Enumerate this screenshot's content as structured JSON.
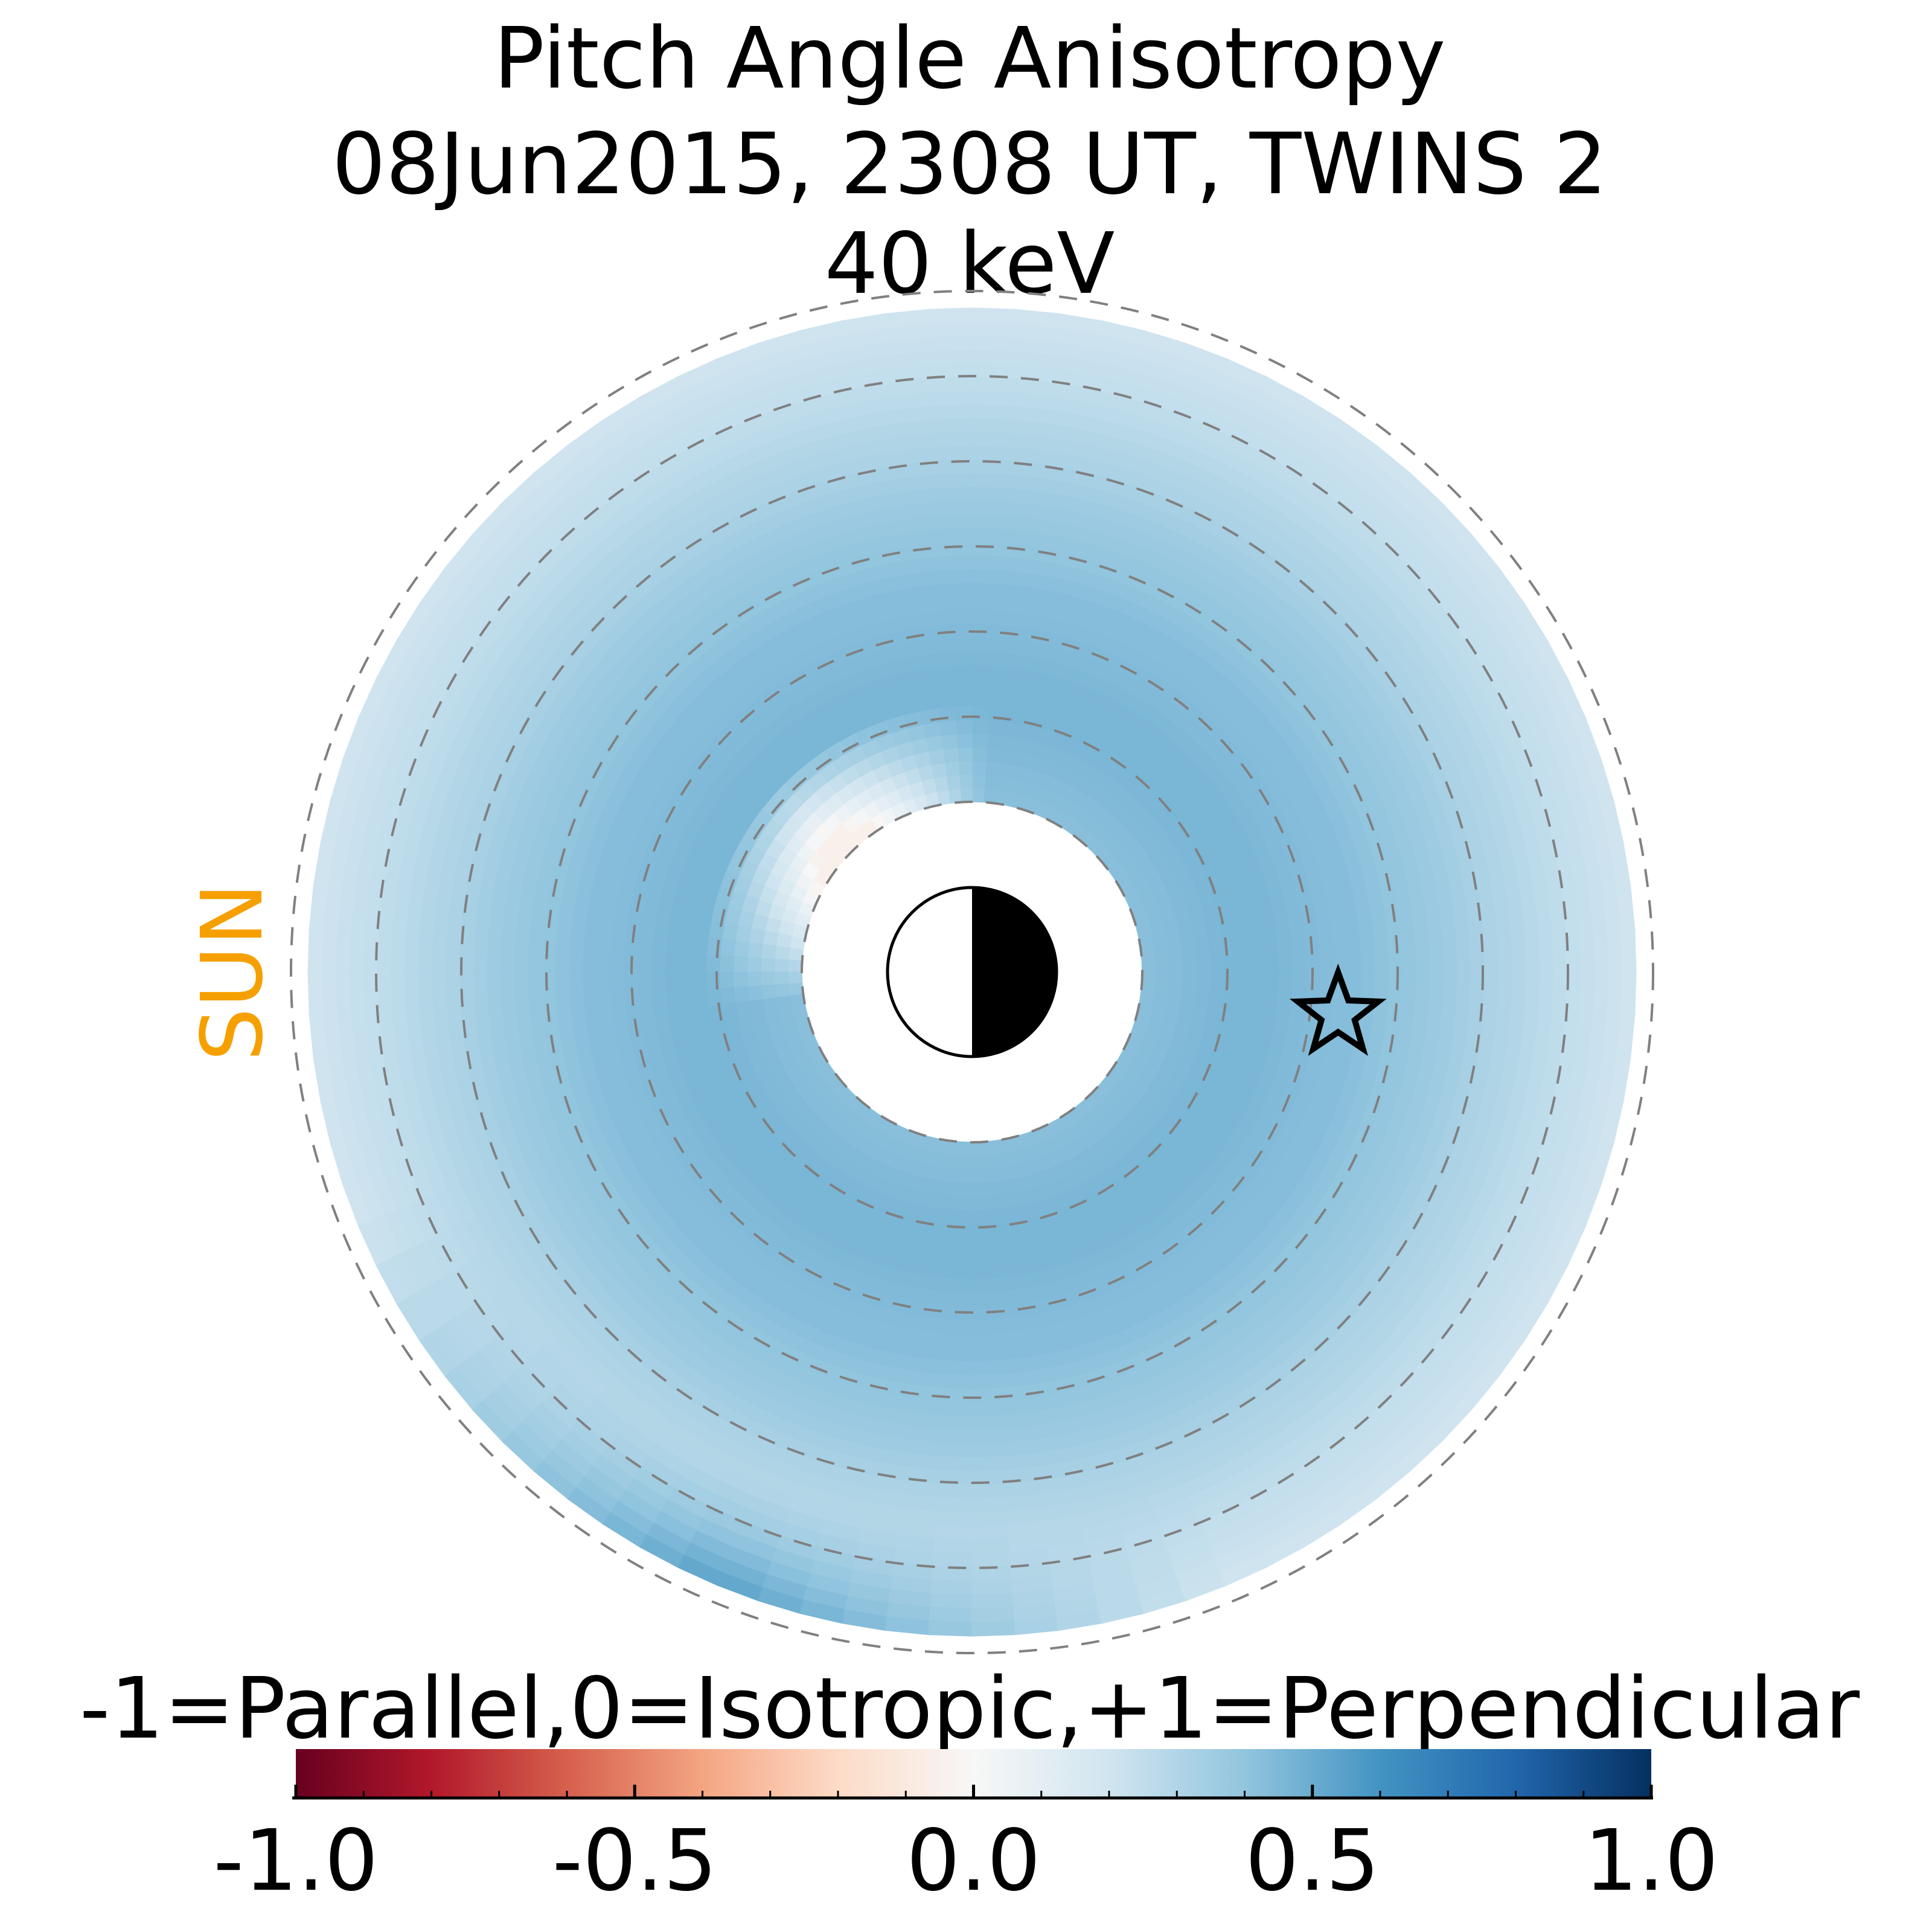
{
  "chart_data": {
    "type": "heatmap",
    "title_lines": [
      "Pitch Angle Anisotropy",
      "08Jun2015, 2308 UT,  TWINS 2",
      "40 keV"
    ],
    "side_label": "SUN",
    "colorbar": {
      "label": "-1=Parallel,0=Isotropic,+1=Perpendicular",
      "min": -1.0,
      "max": 1.0,
      "ticks": [
        -1.0,
        -0.5,
        0.0,
        0.5,
        1.0
      ],
      "tick_labels": [
        "-1.0",
        "-0.5",
        "0.0",
        "0.5",
        "1.0"
      ],
      "colormap": "RdBu"
    },
    "radial_profile": {
      "r": [
        2.0,
        2.5,
        3.0,
        3.5,
        4.0,
        4.5,
        5.0,
        5.5,
        6.0,
        6.5,
        7.0,
        7.5,
        8.0
      ],
      "anisotropy": [
        0.42,
        0.44,
        0.46,
        0.46,
        0.44,
        0.43,
        0.4,
        0.37,
        0.33,
        0.29,
        0.25,
        0.22,
        0.19
      ]
    },
    "dusk_brightening": {
      "mlt_hours": [
        18,
        21
      ],
      "anisotropy_outer": 0.55
    },
    "dayside_isotropic_patch": {
      "anisotropy": -0.05
    },
    "rings_re": [
      2,
      3,
      4,
      5,
      6,
      7,
      8
    ],
    "data_inner_re": 2.0,
    "data_outer_re": 7.8,
    "star_marker": {
      "x_re": 4.3,
      "y_re": -0.5
    },
    "colors": {
      "sun_label": "#f5a000",
      "ring": "#808080",
      "outline": "#000000"
    }
  }
}
